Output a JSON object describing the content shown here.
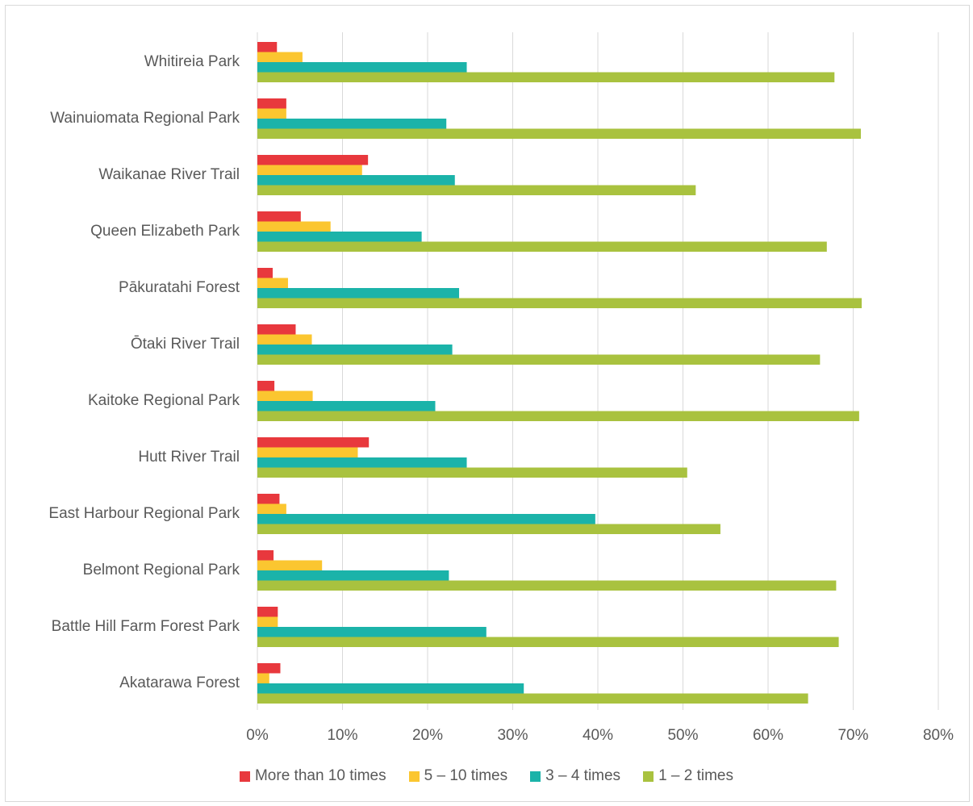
{
  "chart_data": {
    "type": "bar",
    "orientation": "horizontal",
    "categories": [
      "Whitireia Park",
      "Wainuiomata Regional Park",
      "Waikanae River Trail",
      "Queen Elizabeth Park",
      "Pākuratahi Forest",
      "Ōtaki River Trail",
      "Kaitoke Regional Park",
      "Hutt River Trail",
      "East Harbour Regional Park",
      "Belmont Regional Park",
      "Battle Hill Farm Forest Park",
      "Akatarawa Forest"
    ],
    "series": [
      {
        "name": "More than 10 times",
        "color": "#e8383d",
        "values": [
          2.3,
          3.4,
          13.0,
          5.1,
          1.8,
          4.5,
          2.0,
          13.1,
          2.6,
          1.9,
          2.4,
          2.7
        ]
      },
      {
        "name": "5 – 10 times",
        "color": "#fbc630",
        "values": [
          5.3,
          3.4,
          12.3,
          8.6,
          3.6,
          6.4,
          6.5,
          11.8,
          3.4,
          7.6,
          2.4,
          1.4
        ]
      },
      {
        "name": "3 – 4 times",
        "color": "#1bb3a9",
        "values": [
          24.6,
          22.2,
          23.2,
          19.3,
          23.7,
          22.9,
          20.9,
          24.6,
          39.7,
          22.5,
          26.9,
          31.3
        ]
      },
      {
        "name": "1 – 2 times",
        "color": "#a9c23f",
        "values": [
          67.8,
          70.9,
          51.5,
          66.9,
          71.0,
          66.1,
          70.7,
          50.5,
          54.4,
          68.0,
          68.3,
          64.7
        ]
      }
    ],
    "xlim": [
      0,
      80
    ],
    "x_ticks": [
      "0%",
      "10%",
      "20%",
      "30%",
      "40%",
      "50%",
      "60%",
      "70%",
      "80%"
    ],
    "grid": "vertical",
    "legend_position": "bottom",
    "title": "",
    "xlabel": "",
    "ylabel": ""
  }
}
